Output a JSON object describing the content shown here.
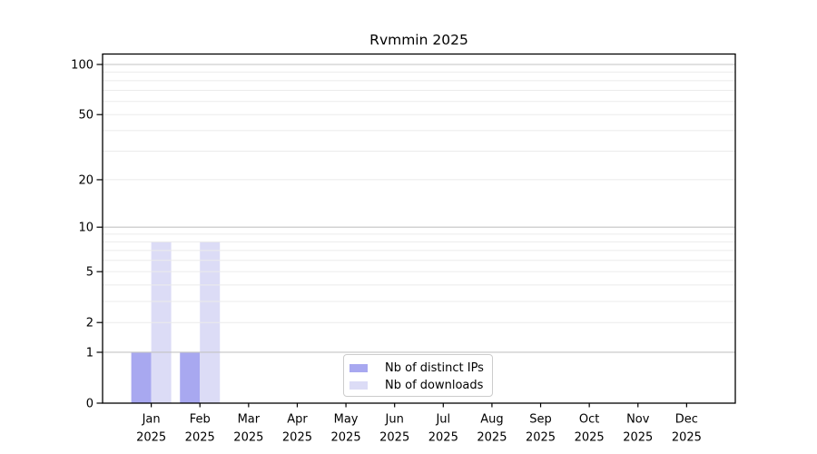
{
  "title": "Rvmmin 2025",
  "chart_data": {
    "type": "bar",
    "title": "Rvmmin 2025",
    "categories": [
      "Jan",
      "Feb",
      "Mar",
      "Apr",
      "May",
      "Jun",
      "Jul",
      "Aug",
      "Sep",
      "Oct",
      "Nov",
      "Dec"
    ],
    "x_tick_second_line": "2025",
    "series": [
      {
        "name": "Nb of distinct IPs",
        "color": "#a8a8f0",
        "values": [
          1,
          1,
          0,
          0,
          0,
          0,
          0,
          0,
          0,
          0,
          0,
          0
        ]
      },
      {
        "name": "Nb of downloads",
        "color": "#dcdcf6",
        "values": [
          8,
          8,
          0,
          0,
          0,
          0,
          0,
          0,
          0,
          0,
          0,
          0
        ]
      }
    ],
    "y_axis": {
      "scale": "log1p",
      "tick_labels": [
        "0",
        "1",
        "2",
        "5",
        "10",
        "20",
        "50",
        "100"
      ],
      "tick_values": [
        0,
        1,
        2,
        5,
        10,
        20,
        50,
        100
      ],
      "major_gridlines": [
        1,
        10,
        100
      ],
      "minor_gridlines": [
        2,
        3,
        4,
        5,
        6,
        7,
        8,
        9,
        20,
        30,
        40,
        50,
        60,
        70,
        80,
        90
      ],
      "range_max": 110
    },
    "grid": true,
    "legend": {
      "position": "lower-center-inside",
      "entries": [
        "Nb of distinct IPs",
        "Nb of downloads"
      ]
    },
    "colors": {
      "major_grid": "#c3c3c3",
      "minor_grid": "#ebebeb",
      "spine": "#000000",
      "background": "#ffffff"
    }
  }
}
